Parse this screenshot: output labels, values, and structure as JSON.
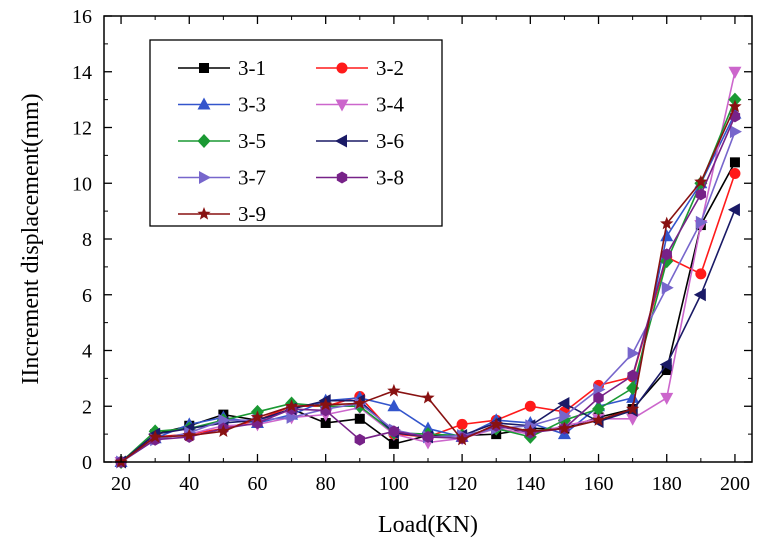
{
  "chart_data": {
    "type": "line",
    "title": "",
    "xlabel": "Load(KN)",
    "ylabel": "IIncrement displacement(mm)",
    "xlim": [
      15,
      205
    ],
    "ylim": [
      0,
      16
    ],
    "xticks": [
      20,
      40,
      60,
      80,
      100,
      120,
      140,
      160,
      180,
      200
    ],
    "yticks": [
      0,
      2,
      4,
      6,
      8,
      10,
      12,
      14,
      16
    ],
    "legend_position": "top-left",
    "grid": false,
    "x": [
      20,
      30,
      40,
      50,
      60,
      70,
      80,
      90,
      100,
      110,
      120,
      130,
      140,
      150,
      160,
      170,
      180,
      190,
      200
    ],
    "series": [
      {
        "name": "3-1",
        "color": "#000000",
        "marker": "square",
        "values": [
          0,
          1.0,
          1.3,
          1.7,
          1.5,
          1.9,
          1.4,
          1.55,
          0.65,
          0.95,
          0.95,
          1.0,
          1.2,
          1.2,
          1.6,
          1.9,
          3.3,
          8.5,
          10.75
        ]
      },
      {
        "name": "3-2",
        "color": "#ff1a1a",
        "marker": "circle",
        "values": [
          0,
          0.9,
          1.0,
          1.2,
          1.5,
          2.0,
          2.0,
          2.35,
          1.0,
          0.9,
          1.35,
          1.5,
          2.0,
          1.8,
          2.75,
          3.05,
          7.35,
          6.75,
          10.35
        ]
      },
      {
        "name": "3-3",
        "color": "#3355cc",
        "marker": "triangle-up",
        "values": [
          0,
          0.85,
          1.35,
          1.6,
          1.4,
          1.7,
          2.2,
          2.3,
          2.0,
          1.2,
          0.9,
          1.5,
          1.4,
          1.0,
          2.0,
          2.3,
          8.1,
          10.0,
          12.5
        ]
      },
      {
        "name": "3-4",
        "color": "#cc66cc",
        "marker": "triangle-down",
        "values": [
          0,
          0.85,
          1.0,
          1.3,
          1.35,
          1.6,
          1.7,
          1.95,
          1.0,
          0.7,
          0.85,
          1.2,
          1.0,
          1.3,
          1.55,
          1.55,
          2.3,
          8.5,
          14.0
        ]
      },
      {
        "name": "3-5",
        "color": "#1a9933",
        "marker": "diamond",
        "values": [
          0,
          1.1,
          1.2,
          1.5,
          1.8,
          2.1,
          2.0,
          2.0,
          1.05,
          1.0,
          0.95,
          1.2,
          0.9,
          1.5,
          1.9,
          2.65,
          7.2,
          10.0,
          13.0
        ]
      },
      {
        "name": "3-6",
        "color": "#1a1a66",
        "marker": "triangle-left",
        "values": [
          0,
          1.0,
          1.2,
          1.4,
          1.5,
          1.9,
          2.2,
          2.2,
          1.05,
          0.9,
          0.95,
          1.4,
          1.3,
          2.1,
          1.45,
          1.85,
          3.5,
          6.0,
          9.05
        ]
      },
      {
        "name": "3-7",
        "color": "#7766cc",
        "marker": "triangle-right",
        "values": [
          0,
          0.8,
          1.05,
          1.5,
          1.5,
          1.6,
          1.9,
          2.1,
          1.15,
          0.9,
          0.95,
          1.2,
          1.3,
          1.65,
          2.6,
          3.9,
          6.25,
          8.6,
          11.85
        ]
      },
      {
        "name": "3-8",
        "color": "#772288",
        "marker": "hexagon",
        "values": [
          0,
          0.8,
          0.9,
          1.2,
          1.4,
          1.9,
          1.85,
          0.8,
          1.1,
          0.9,
          0.85,
          1.3,
          1.05,
          1.2,
          2.3,
          3.1,
          7.45,
          9.6,
          12.4
        ]
      },
      {
        "name": "3-9",
        "color": "#881111",
        "marker": "star",
        "values": [
          0,
          0.9,
          0.95,
          1.1,
          1.6,
          2.0,
          2.05,
          2.1,
          2.55,
          2.3,
          0.8,
          1.35,
          1.1,
          1.2,
          1.5,
          1.9,
          8.55,
          10.05,
          12.75
        ]
      }
    ]
  }
}
